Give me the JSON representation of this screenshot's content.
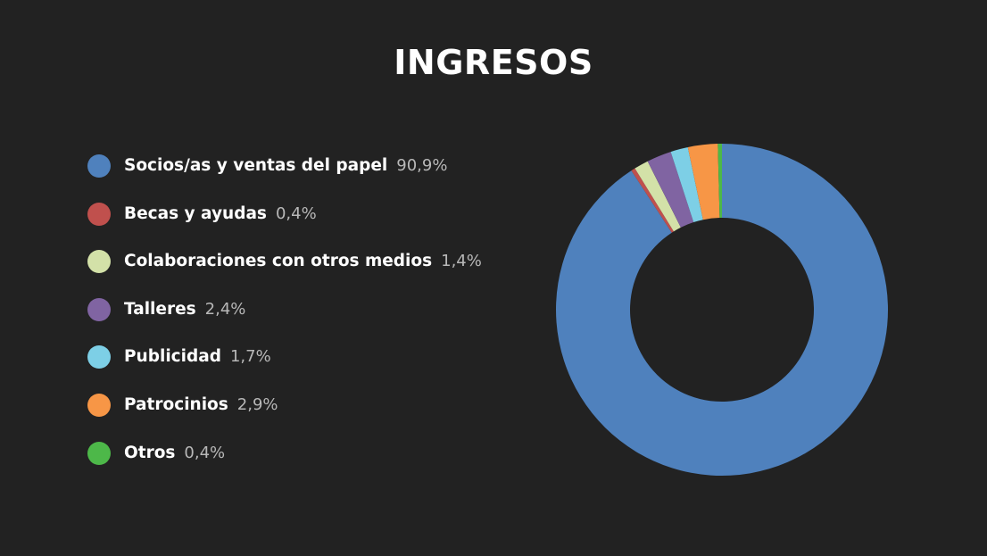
{
  "chart_data": {
    "type": "pie",
    "title": "INGRESOS",
    "legend_position": "left",
    "slices": [
      {
        "label": "Socios/as y ventas del papel",
        "value": 90.9,
        "value_label": "90,9%",
        "color": "#4f81bd"
      },
      {
        "label": "Becas y ayudas",
        "value": 0.4,
        "value_label": "0,4%",
        "color": "#c0504d"
      },
      {
        "label": "Colaboraciones con otros medios",
        "value": 1.4,
        "value_label": "1,4%",
        "color": "#d3e1a8"
      },
      {
        "label": "Talleres",
        "value": 2.4,
        "value_label": "2,4%",
        "color": "#8064a2"
      },
      {
        "label": "Publicidad",
        "value": 1.7,
        "value_label": "1,7%",
        "color": "#7dcfe6"
      },
      {
        "label": "Patrocinios",
        "value": 2.9,
        "value_label": "2,9%",
        "color": "#f79646"
      },
      {
        "label": "Otros",
        "value": 0.4,
        "value_label": "0,4%",
        "color": "#4db849"
      }
    ]
  }
}
